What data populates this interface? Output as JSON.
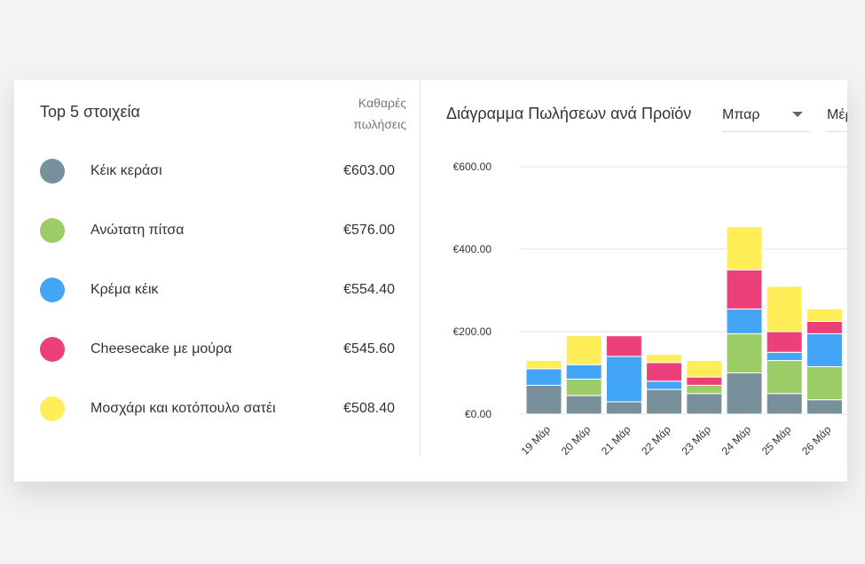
{
  "panel": {
    "title": "Top 5 στοιχεία",
    "column_header": "Καθαρές πωλήσεις",
    "net_sales": [
      "€603.00",
      "€576.00",
      "€554.40",
      "€545.60",
      "€508.40"
    ]
  },
  "chart_data": {
    "type": "stacked_bar",
    "title": "Διάγραμμα Πωλήσεων ανά Προϊόν",
    "controls": [
      "Μπαρ",
      "Μέρ"
    ],
    "categories": [
      "19 Μάρ",
      "20 Μάρ",
      "21 Μάρ",
      "22 Μάρ",
      "23 Μάρ",
      "24 Μάρ",
      "25 Μάρ",
      "26 Μάρ"
    ],
    "series": [
      {
        "name": "Κέικ κεράσι",
        "color": "#78909c",
        "values": [
          70,
          45,
          30,
          60,
          50,
          100,
          50,
          35
        ]
      },
      {
        "name": "Ανώτατη πίτσα",
        "color": "#9ccc65",
        "values": [
          0,
          40,
          0,
          0,
          20,
          95,
          80,
          80
        ]
      },
      {
        "name": "Κρέμα κέικ",
        "color": "#42a5f5",
        "values": [
          40,
          35,
          110,
          20,
          0,
          60,
          20,
          80
        ]
      },
      {
        "name": "Cheesecake με μούρα",
        "color": "#ec407a",
        "values": [
          0,
          0,
          50,
          45,
          20,
          95,
          50,
          30
        ]
      },
      {
        "name": "Μοσχάρι και κοτόπουλο σατέι",
        "color": "#ffee58",
        "values": [
          20,
          70,
          0,
          20,
          40,
          105,
          110,
          30
        ]
      }
    ],
    "ylim": [
      0,
      600
    ],
    "yticks": [
      {
        "value": 0,
        "label": "€0.00"
      },
      {
        "value": 200,
        "label": "€200.00"
      },
      {
        "value": 400,
        "label": "€400.00"
      },
      {
        "value": 600,
        "label": "€600.00"
      }
    ],
    "grid": true
  }
}
